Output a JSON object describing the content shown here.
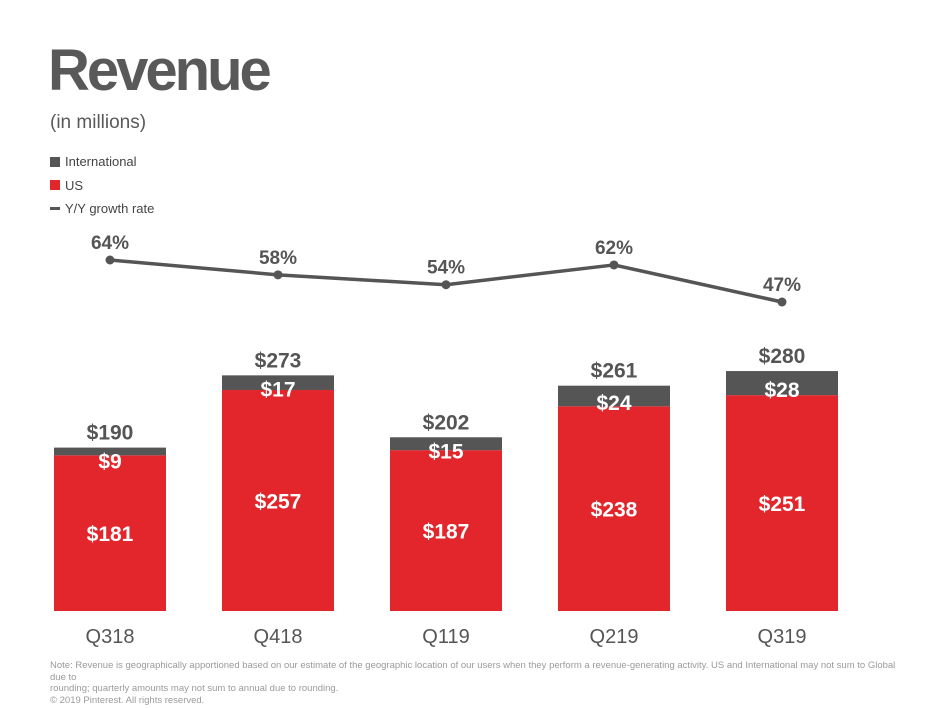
{
  "title": "Revenue",
  "subtitle": "(in millions)",
  "legend": [
    {
      "label": "International",
      "color": "#555555",
      "kind": "square"
    },
    {
      "label": "US",
      "color": "#e3262b",
      "kind": "square"
    },
    {
      "label": "Y/Y growth rate",
      "color": "#555555",
      "kind": "line"
    }
  ],
  "chart_data": {
    "type": "bar",
    "stacked": true,
    "categories": [
      "Q318",
      "Q418",
      "Q119",
      "Q219",
      "Q319"
    ],
    "series": [
      {
        "name": "US",
        "color": "#e3262b",
        "values": [
          181,
          257,
          187,
          238,
          251
        ],
        "labels": [
          "$181",
          "$257",
          "$187",
          "$238",
          "$251"
        ]
      },
      {
        "name": "International",
        "color": "#555555",
        "values": [
          9,
          17,
          15,
          24,
          28
        ],
        "labels": [
          "$9",
          "$17",
          "$15",
          "$24",
          "$28"
        ]
      }
    ],
    "totals": [
      190,
      273,
      202,
      261,
      280
    ],
    "total_labels": [
      "$190",
      "$273",
      "$202",
      "$261",
      "$280"
    ],
    "growth": {
      "name": "Y/Y growth rate",
      "color": "#555555",
      "values": [
        64,
        58,
        54,
        62,
        47
      ],
      "labels": [
        "64%",
        "58%",
        "54%",
        "62%",
        "47%"
      ]
    },
    "ylim": [
      0,
      300
    ],
    "grid": false,
    "legend_position": "top-left"
  },
  "footnote": {
    "line1": "Note: Revenue is geographically apportioned based on our estimate of the geographic location of our users when they perform a revenue-generating activity. US and International may not sum to Global due to",
    "line2": "rounding; quarterly amounts may not sum to annual due to rounding.",
    "line3": "© 2019 Pinterest. All rights reserved."
  }
}
